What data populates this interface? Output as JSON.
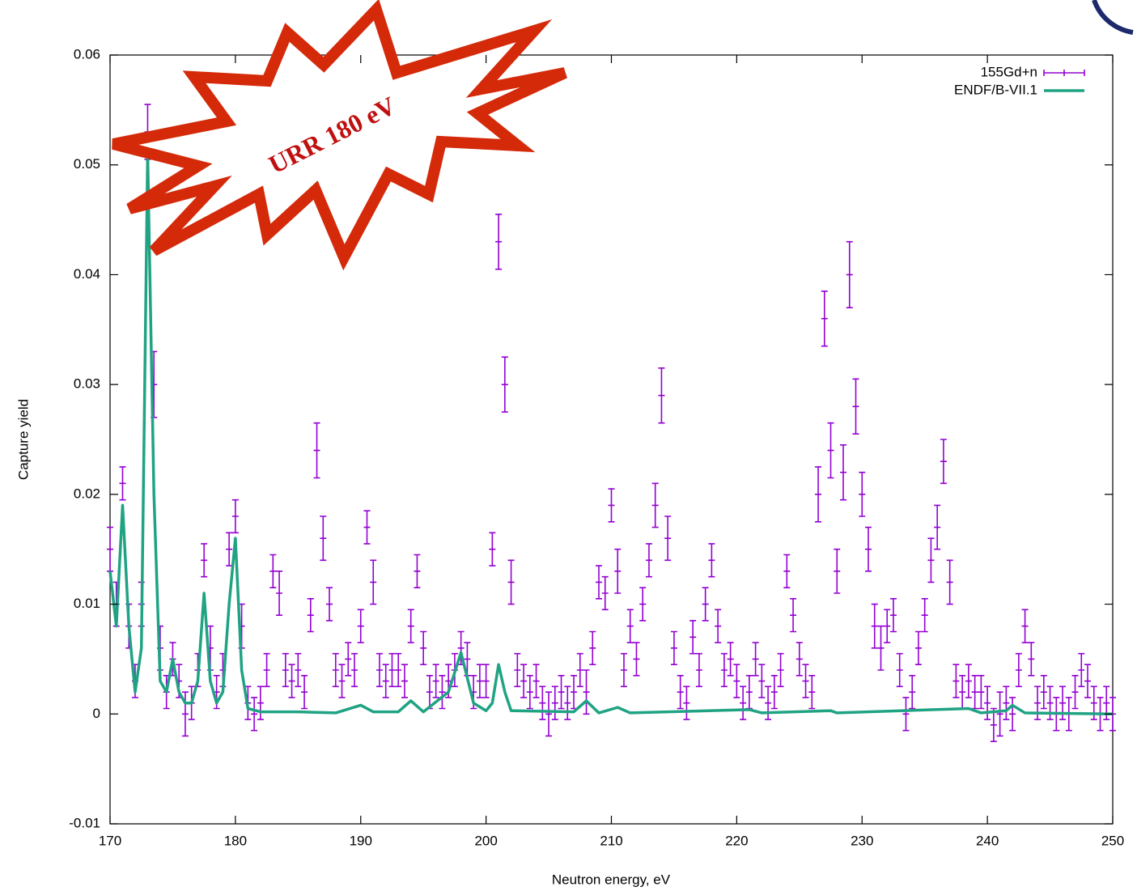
{
  "chart_data": {
    "type": "line",
    "xlabel": "Neutron energy, eV",
    "ylabel": "Capture yield",
    "annotation": "URR 180 eV",
    "xlim": [
      170,
      250
    ],
    "xticks": [
      170,
      180,
      190,
      200,
      210,
      220,
      230,
      240,
      250
    ],
    "ylim": [
      -0.01,
      0.06
    ],
    "yticks": [
      -0.01,
      0,
      0.01,
      0.02,
      0.03,
      0.04,
      0.05,
      0.06
    ],
    "legend": "top right",
    "series": [
      {
        "name": "155Gd+n",
        "color": "#9400d3",
        "style": "errorbars",
        "x": [
          170,
          170.5,
          171,
          171.5,
          172,
          172.5,
          173,
          173.5,
          174,
          174.5,
          175,
          175.5,
          176,
          176.5,
          177,
          177.5,
          178,
          178.5,
          179,
          179.5,
          180,
          180.5,
          181,
          181.5,
          182,
          182.5,
          183,
          183.5,
          184,
          184.5,
          185,
          185.5,
          186,
          186.5,
          187,
          187.5,
          188,
          188.5,
          189,
          189.5,
          190,
          190.5,
          191,
          191.5,
          192,
          192.5,
          193,
          193.5,
          194,
          194.5,
          195,
          195.5,
          196,
          196.5,
          197,
          197.5,
          198,
          198.5,
          199,
          199.5,
          200,
          200.5,
          201,
          201.5,
          202,
          202.5,
          203,
          203.5,
          204,
          204.5,
          205,
          205.5,
          206,
          206.5,
          207,
          207.5,
          208,
          208.5,
          209,
          209.5,
          210,
          210.5,
          211,
          211.5,
          212,
          212.5,
          213,
          213.5,
          214,
          214.5,
          215,
          215.5,
          216,
          216.5,
          217,
          217.5,
          218,
          218.5,
          219,
          219.5,
          220,
          220.5,
          221,
          221.5,
          222,
          222.5,
          223,
          223.5,
          224,
          224.5,
          225,
          225.5,
          226,
          226.5,
          227,
          227.5,
          228,
          228.5,
          229,
          229.5,
          230,
          230.5,
          231,
          231.5,
          232,
          232.5,
          233,
          233.5,
          234,
          234.5,
          235,
          235.5,
          236,
          236.5,
          237,
          237.5,
          238,
          238.5,
          239,
          239.5,
          240,
          240.5,
          241,
          241.5,
          242,
          242.5,
          243,
          243.5,
          244,
          244.5,
          245,
          245.5,
          246,
          246.5,
          247,
          247.5,
          248,
          248.5,
          249,
          249.5,
          250
        ],
        "values": [
          0.015,
          0.01,
          0.021,
          0.008,
          0.003,
          0.01,
          0.053,
          0.03,
          0.006,
          0.002,
          0.005,
          0.003,
          0,
          0.001,
          0.004,
          0.014,
          0.006,
          0.002,
          0.004,
          0.015,
          0.018,
          0.008,
          0.001,
          0,
          0.001,
          0.004,
          0.013,
          0.011,
          0.004,
          0.003,
          0.004,
          0.002,
          0.009,
          0.024,
          0.016,
          0.01,
          0.004,
          0.003,
          0.005,
          0.004,
          0.008,
          0.017,
          0.012,
          0.004,
          0.003,
          0.004,
          0.004,
          0.003,
          0.008,
          0.013,
          0.006,
          0.002,
          0.003,
          0.002,
          0.003,
          0.004,
          0.006,
          0.005,
          0.002,
          0.003,
          0.003,
          0.015,
          0.043,
          0.03,
          0.012,
          0.004,
          0.003,
          0.002,
          0.003,
          0.001,
          0,
          0.001,
          0.002,
          0.001,
          0.002,
          0.004,
          0.002,
          0.006,
          0.012,
          0.011,
          0.019,
          0.013,
          0.004,
          0.008,
          0.005,
          0.01,
          0.014,
          0.019,
          0.029,
          0.016,
          0.006,
          0.002,
          0.001,
          0.007,
          0.004,
          0.01,
          0.014,
          0.008,
          0.004,
          0.005,
          0.003,
          0.001,
          0.002,
          0.005,
          0.003,
          0.001,
          0.002,
          0.004,
          0.013,
          0.009,
          0.005,
          0.003,
          0.002,
          0.02,
          0.036,
          0.024,
          0.013,
          0.022,
          0.04,
          0.028,
          0.02,
          0.015,
          0.008,
          0.006,
          0.008,
          0.009,
          0.004,
          0,
          0.002,
          0.006,
          0.009,
          0.014,
          0.017,
          0.023,
          0.012,
          0.003,
          0.002,
          0.003,
          0.002,
          0.002,
          0.001,
          -0.001,
          0,
          0.001,
          0,
          0.004,
          0.008,
          0.005,
          0.001,
          0.002,
          0.001,
          0,
          0.001,
          0,
          0.002,
          0.004,
          0.003,
          0.001,
          0,
          0.001,
          0
        ],
        "errors": [
          0.002,
          0.002,
          0.0015,
          0.002,
          0.0015,
          0.002,
          0.0025,
          0.003,
          0.002,
          0.0015,
          0.0015,
          0.0015,
          0.002,
          0.0015,
          0.0015,
          0.0015,
          0.002,
          0.0015,
          0.0015,
          0.0015,
          0.0015,
          0.002,
          0.0015,
          0.0015,
          0.0015,
          0.0015,
          0.0015,
          0.002,
          0.0015,
          0.0015,
          0.0015,
          0.0015,
          0.0015,
          0.0025,
          0.002,
          0.0015,
          0.0015,
          0.0015,
          0.0015,
          0.0015,
          0.0015,
          0.0015,
          0.002,
          0.0015,
          0.0015,
          0.0015,
          0.0015,
          0.0015,
          0.0015,
          0.0015,
          0.0015,
          0.0015,
          0.0015,
          0.0015,
          0.0015,
          0.0015,
          0.0015,
          0.0015,
          0.0015,
          0.0015,
          0.0015,
          0.0015,
          0.0025,
          0.0025,
          0.002,
          0.0015,
          0.0015,
          0.0015,
          0.0015,
          0.0015,
          0.002,
          0.0015,
          0.0015,
          0.0015,
          0.0015,
          0.0015,
          0.002,
          0.0015,
          0.0015,
          0.0015,
          0.0015,
          0.002,
          0.0015,
          0.0015,
          0.0015,
          0.0015,
          0.0015,
          0.002,
          0.0025,
          0.002,
          0.0015,
          0.0015,
          0.0015,
          0.0015,
          0.0015,
          0.0015,
          0.0015,
          0.0015,
          0.0015,
          0.0015,
          0.0015,
          0.0015,
          0.0015,
          0.0015,
          0.0015,
          0.0015,
          0.0015,
          0.0015,
          0.0015,
          0.0015,
          0.0015,
          0.0015,
          0.0015,
          0.0025,
          0.0025,
          0.0025,
          0.002,
          0.0025,
          0.003,
          0.0025,
          0.002,
          0.002,
          0.002,
          0.002,
          0.0015,
          0.0015,
          0.0015,
          0.0015,
          0.0015,
          0.0015,
          0.0015,
          0.002,
          0.002,
          0.002,
          0.002,
          0.0015,
          0.0015,
          0.0015,
          0.0015,
          0.0015,
          0.0015,
          0.0015,
          0.002,
          0.0015,
          0.0015,
          0.0015,
          0.0015,
          0.0015,
          0.0015,
          0.0015,
          0.0015,
          0.0015,
          0.0015,
          0.0015,
          0.0015,
          0.0015,
          0.0015,
          0.0015,
          0.0015,
          0.0015,
          0.0015
        ]
      },
      {
        "name": "ENDF/B-VII.1",
        "color": "#1fa383",
        "style": "line",
        "x": [
          170,
          170.5,
          171,
          171.5,
          172,
          172.5,
          173,
          173.5,
          174,
          174.5,
          175,
          175.5,
          176,
          176.5,
          177,
          177.5,
          178,
          178.5,
          179,
          179.5,
          180,
          180.5,
          181,
          182,
          185,
          188,
          190,
          191,
          193,
          194,
          195,
          197,
          198,
          199,
          200,
          200.5,
          201,
          201.5,
          202,
          207,
          208,
          209,
          210.5,
          211.5,
          221,
          222,
          227.5,
          228,
          238.5,
          239.5,
          241.5,
          242,
          243,
          250
        ],
        "values": [
          0.013,
          0.008,
          0.019,
          0.008,
          0.002,
          0.006,
          0.051,
          0.02,
          0.003,
          0.002,
          0.005,
          0.002,
          0.001,
          0.001,
          0.003,
          0.011,
          0.003,
          0.001,
          0.002,
          0.01,
          0.016,
          0.004,
          0.0005,
          0.0002,
          0.0002,
          0.0001,
          0.0008,
          0.0002,
          0.0002,
          0.0012,
          0.0002,
          0.002,
          0.0056,
          0.001,
          0.0003,
          0.001,
          0.0045,
          0.002,
          0.0003,
          0.0002,
          0.0012,
          0.0001,
          0.0006,
          0.0001,
          0.0004,
          0.0001,
          0.0003,
          0.0001,
          0.0005,
          0.0001,
          0.0003,
          0.0008,
          0.0001,
          0
        ]
      }
    ]
  }
}
